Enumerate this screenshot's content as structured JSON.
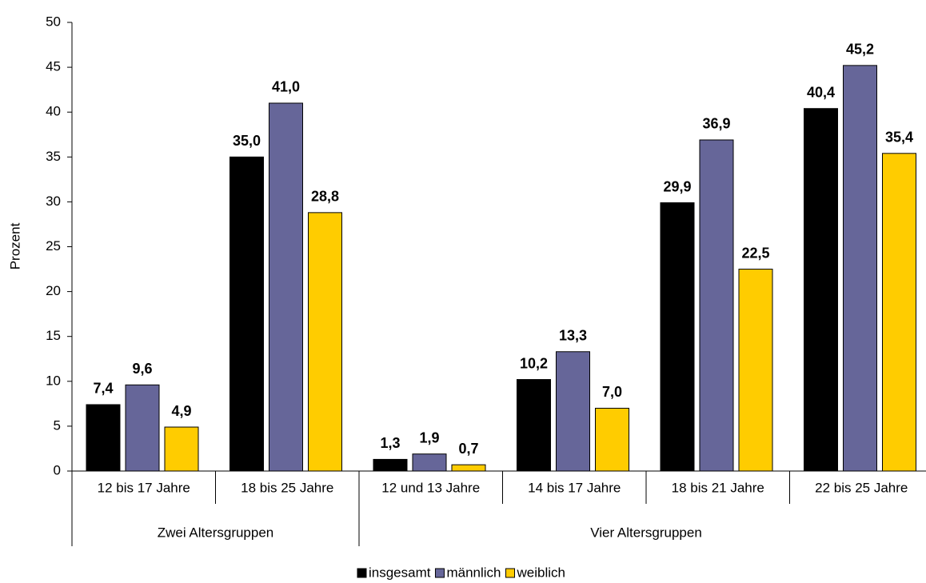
{
  "chart_data": {
    "type": "bar",
    "y_label": "Prozent",
    "category_groups": [
      {
        "name": "Zwei Altersgruppen",
        "categories": [
          "12 bis 17 Jahre",
          "18 bis 25 Jahre"
        ]
      },
      {
        "name": "Vier Altersgruppen",
        "categories": [
          "12 und 13 Jahre",
          "14 bis 17 Jahre",
          "18 bis 21 Jahre",
          "22 bis 25 Jahre"
        ]
      }
    ],
    "series": [
      {
        "name": "insgesamt",
        "color": "#000000",
        "values": [
          7.4,
          35.0,
          1.3,
          10.2,
          29.9,
          40.4
        ],
        "value_labels": [
          "7,4",
          "35,0",
          "1,3",
          "10,2",
          "29,9",
          "40,4"
        ]
      },
      {
        "name": "männlich",
        "color": "#666699",
        "values": [
          9.6,
          41.0,
          1.9,
          13.3,
          36.9,
          45.2
        ],
        "value_labels": [
          "9,6",
          "41,0",
          "1,9",
          "13,3",
          "36,9",
          "45,2"
        ]
      },
      {
        "name": "weiblich",
        "color": "#ffcc00",
        "values": [
          4.9,
          28.8,
          0.7,
          7.0,
          22.5,
          35.4
        ],
        "value_labels": [
          "4,9",
          "28,8",
          "0,7",
          "7,0",
          "22,5",
          "35,4"
        ]
      }
    ],
    "ylim": [
      0,
      50
    ],
    "yticks": [
      0,
      5,
      10,
      15,
      20,
      25,
      30,
      35,
      40,
      45,
      50
    ],
    "grid": false,
    "legend": "bottom"
  }
}
